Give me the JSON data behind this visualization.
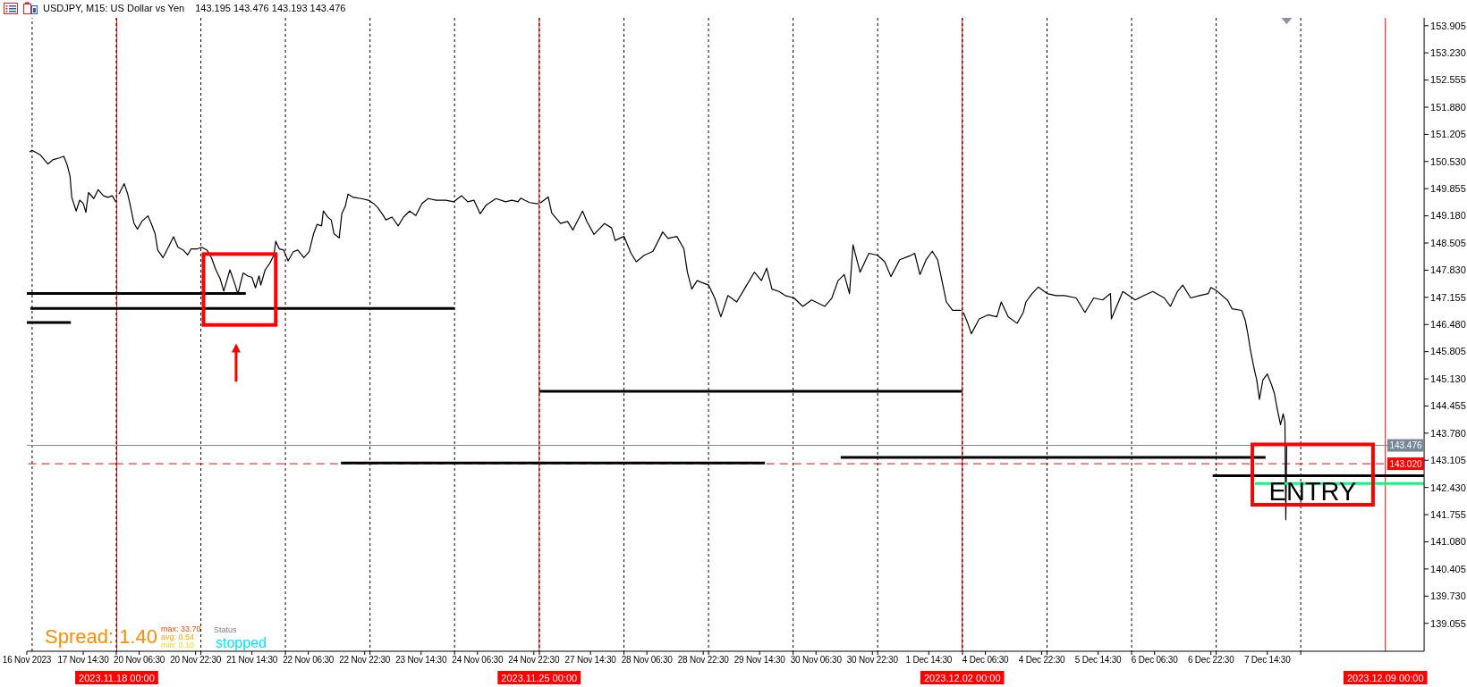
{
  "chart_data": [
    {
      "type": "other",
      "title": "USDJPY, M15: US Dollar vs Yen",
      "subtitle": "143.195 143.476 143.193 143.476"
    },
    {
      "type": "line",
      "series": [
        {
          "color": "#000000",
          "x": [
            "2023-11-16T23:15",
            "2023-11-17T00:00",
            "2023-11-17T02:15",
            "2023-11-17T04:30",
            "2023-11-17T06:00",
            "2023-11-17T07:45",
            "2023-11-17T09:00",
            "2023-11-17T10:00",
            "2023-11-17T10:45",
            "2023-11-17T11:15",
            "2023-11-17T12:30",
            "2023-11-17T13:30",
            "2023-11-17T14:30",
            "2023-11-17T15:15",
            "2023-11-17T16:00",
            "2023-11-17T17:30",
            "2023-11-17T18:45",
            "2023-11-17T20:15",
            "2023-11-17T21:30",
            "2023-11-17T22:45",
            "2023-11-17T23:45"
          ],
          "values": [
            150.77,
            150.81,
            150.7,
            150.47,
            150.58,
            150.62,
            150.66,
            150.43,
            150.17,
            149.64,
            149.3,
            149.57,
            149.49,
            149.27,
            149.76,
            149.61,
            149.83,
            149.68,
            149.64,
            149.68,
            149.53
          ]
        },
        {
          "color": "#000000",
          "x": [
            "2023-11-16T22:30",
            "2023-11-18T00:00"
          ],
          "values": [
            147.25,
            147.25
          ]
        },
        {
          "color": "#000000",
          "x": [
            "2023-11-16T23:30",
            "2023-11-18T00:00"
          ],
          "values": [
            146.88,
            146.88
          ]
        },
        {
          "color": "#000000",
          "x": [
            "2023-11-16T22:30",
            "2023-11-17T11:00"
          ],
          "values": [
            146.53,
            146.53
          ]
        }
      ],
      "xlim": [
        "2023-11-16T22:30",
        "2023-11-18T00:00"
      ],
      "xticks": [
        {
          "value": "2023-11-16T22:30",
          "label": "16 Nov 2023"
        },
        {
          "value": "2023-11-17T14:30",
          "label": "17 Nov 14:30"
        }
      ],
      "ylim": [
        138.36,
        154.1
      ],
      "tick_labels": "x",
      "ref_lines": [
        {
          "axis": "x",
          "value": "2023-11-17T00:00",
          "color": "#000000",
          "line_style": "dotted"
        },
        {
          "axis": "x",
          "value": "2023-11-18T00:00",
          "label": "2023.11.18 00:00",
          "color": "#ff0000"
        },
        {
          "axis": "y",
          "value": 143.476,
          "color": "#778899"
        },
        {
          "axis": "y",
          "value": 143.02,
          "color": "#ff0000",
          "line_style": "dashed"
        }
      ]
    },
    {
      "type": "line",
      "series": [
        {
          "color": "#000000",
          "x": [
            "2023-11-20T00:45",
            "2023-11-20T02:15",
            "2023-11-20T03:15",
            "2023-11-20T03:45",
            "2023-11-20T05:00",
            "2023-11-20T06:00",
            "2023-11-20T07:15",
            "2023-11-20T09:00",
            "2023-11-20T10:00",
            "2023-11-20T11:00",
            "2023-11-20T11:45",
            "2023-11-20T13:15",
            "2023-11-20T15:00",
            "2023-11-20T16:15",
            "2023-11-20T17:30",
            "2023-11-20T19:00",
            "2023-11-20T20:15",
            "2023-11-20T21:15",
            "2023-11-20T23:00",
            "2023-11-21T00:15",
            "2023-11-21T01:45",
            "2023-11-21T03:00",
            "2023-11-21T04:15",
            "2023-11-21T05:30",
            "2023-11-21T06:30",
            "2023-11-21T08:15",
            "2023-11-21T09:45",
            "2023-11-21T10:30",
            "2023-11-21T12:00",
            "2023-11-21T13:15",
            "2023-11-21T14:30",
            "2023-11-21T15:30",
            "2023-11-21T16:30",
            "2023-11-21T17:00",
            "2023-11-21T18:15",
            "2023-11-21T19:30",
            "2023-11-21T20:45",
            "2023-11-21T21:15",
            "2023-11-21T22:15",
            "2023-11-21T23:30",
            "2023-11-22T00:45",
            "2023-11-22T02:15",
            "2023-11-22T03:30",
            "2023-11-22T05:15",
            "2023-11-22T06:45",
            "2023-11-22T08:00",
            "2023-11-22T09:00",
            "2023-11-22T10:15",
            "2023-11-22T10:45",
            "2023-11-22T12:00",
            "2023-11-22T13:00",
            "2023-11-22T13:45",
            "2023-11-22T15:15",
            "2023-11-22T16:00",
            "2023-11-22T17:00",
            "2023-11-22T17:45",
            "2023-11-22T19:15",
            "2023-11-22T21:30",
            "2023-11-22T23:30",
            "2023-11-23T01:00",
            "2023-11-23T02:15",
            "2023-11-23T03:45",
            "2023-11-23T04:30",
            "2023-11-23T06:15",
            "2023-11-23T08:00",
            "2023-11-23T09:30",
            "2023-11-23T11:15",
            "2023-11-23T13:00",
            "2023-11-23T14:45",
            "2023-11-23T16:30",
            "2023-11-23T18:45",
            "2023-11-23T21:30",
            "2023-11-23T23:45",
            "2023-11-24T02:00",
            "2023-11-24T03:45",
            "2023-11-24T05:30",
            "2023-11-24T07:15",
            "2023-11-24T09:00",
            "2023-11-24T11:45",
            "2023-11-24T14:30",
            "2023-11-24T16:15",
            "2023-11-24T18:00",
            "2023-11-24T18:45",
            "2023-11-24T21:15",
            "2023-11-24T23:45"
          ],
          "values": [
            149.72,
            149.98,
            149.72,
            149.53,
            149.0,
            148.85,
            149.04,
            149.18,
            148.97,
            148.74,
            148.33,
            148.14,
            148.44,
            148.66,
            148.4,
            148.33,
            148.21,
            148.36,
            148.36,
            148.4,
            148.33,
            148.14,
            147.84,
            147.61,
            147.31,
            147.84,
            147.46,
            147.24,
            147.76,
            147.69,
            147.65,
            147.39,
            147.69,
            147.46,
            147.84,
            147.99,
            148.21,
            148.55,
            148.36,
            148.33,
            148.06,
            148.29,
            148.33,
            148.14,
            148.29,
            148.74,
            148.97,
            148.93,
            149.3,
            149.15,
            149.08,
            148.74,
            148.63,
            149.23,
            149.42,
            149.72,
            149.64,
            149.61,
            149.57,
            149.49,
            149.38,
            149.19,
            149.08,
            149.15,
            148.93,
            149.15,
            149.3,
            149.19,
            149.49,
            149.61,
            149.57,
            149.57,
            149.53,
            149.68,
            149.53,
            149.57,
            149.23,
            149.45,
            149.61,
            149.53,
            149.57,
            149.53,
            149.62,
            149.51,
            149.48
          ]
        },
        {
          "color": "#000000",
          "x": [
            "2023-11-20T00:00",
            "2023-11-21T12:45"
          ],
          "values": [
            147.25,
            147.25
          ]
        },
        {
          "color": "#000000",
          "x": [
            "2023-11-20T00:00",
            "2023-11-24T00:00"
          ],
          "values": [
            146.88,
            146.88
          ]
        },
        {
          "color": "#000000",
          "x": [
            "2023-11-22T15:45",
            "2023-11-25T00:00"
          ],
          "values": [
            143.04,
            143.04
          ]
        }
      ],
      "xlim": [
        "2023-11-20T00:00",
        "2023-11-25T00:00"
      ],
      "xticks": [
        {
          "value": "2023-11-20T00:00",
          "label": null
        },
        {
          "value": "2023-11-20T06:30",
          "label": "20 Nov 06:30"
        },
        {
          "value": "2023-11-20T22:30",
          "label": "20 Nov 22:30"
        },
        {
          "value": "2023-11-21T00:00",
          "label": null
        },
        {
          "value": "2023-11-21T14:30",
          "label": "21 Nov 14:30"
        },
        {
          "value": "2023-11-22T00:00",
          "label": null
        },
        {
          "value": "2023-11-22T06:30",
          "label": "22 Nov 06:30"
        },
        {
          "value": "2023-11-22T22:30",
          "label": "22 Nov 22:30"
        },
        {
          "value": "2023-11-23T00:00",
          "label": null
        },
        {
          "value": "2023-11-23T14:30",
          "label": "23 Nov 14:30"
        },
        {
          "value": "2023-11-24T00:00",
          "label": null
        },
        {
          "value": "2023-11-24T06:30",
          "label": "24 Nov 06:30"
        },
        {
          "value": "2023-11-24T22:30",
          "label": "24 Nov 22:30"
        }
      ],
      "ylim": [
        138.36,
        154.1
      ],
      "tick_labels": "x",
      "grid": "x",
      "ref_lines": [
        {
          "axis": "x",
          "value": "2023-11-25T00:00",
          "label": "2023.11.25 00:00",
          "color": "#ff0000"
        },
        {
          "axis": "y",
          "value": 143.476,
          "color": "#778899"
        },
        {
          "axis": "y",
          "value": 143.02,
          "color": "#ff0000",
          "line_style": "dashed"
        }
      ]
    },
    {
      "type": "line",
      "series": [
        {
          "color": "#000000",
          "x": [
            "2023-11-27T00:15",
            "2023-11-27T02:30",
            "2023-11-27T03:30",
            "2023-11-27T06:00",
            "2023-11-27T08:00",
            "2023-11-27T09:30",
            "2023-11-27T12:15",
            "2023-11-27T13:30",
            "2023-11-27T15:30",
            "2023-11-27T18:30",
            "2023-11-27T20:30",
            "2023-11-27T21:30",
            "2023-11-28T00:00",
            "2023-11-28T02:00",
            "2023-11-28T03:30",
            "2023-11-28T05:45",
            "2023-11-28T08:15",
            "2023-11-28T11:00",
            "2023-11-28T12:30",
            "2023-11-28T15:00",
            "2023-11-28T17:00",
            "2023-11-28T18:00",
            "2023-11-28T19:15",
            "2023-11-28T20:45",
            "2023-11-29T00:00",
            "2023-11-29T01:45",
            "2023-11-29T03:30",
            "2023-11-29T05:30",
            "2023-11-29T08:00",
            "2023-11-29T10:30",
            "2023-11-29T13:00",
            "2023-11-29T15:00",
            "2023-11-29T16:30",
            "2023-11-29T18:00",
            "2023-11-29T20:00",
            "2023-11-29T21:45",
            "2023-11-30T00:15",
            "2023-11-30T02:45",
            "2023-11-30T05:15",
            "2023-11-30T09:00",
            "2023-11-30T11:00",
            "2023-11-30T12:45",
            "2023-11-30T14:30",
            "2023-11-30T16:00",
            "2023-11-30T17:00",
            "2023-11-30T19:00",
            "2023-11-30T21:30",
            "2023-12-01T00:00",
            "2023-12-01T02:00",
            "2023-12-01T03:45",
            "2023-12-01T06:15",
            "2023-12-01T09:30",
            "2023-12-01T10:30",
            "2023-12-01T12:00",
            "2023-12-01T13:45",
            "2023-12-01T15:30",
            "2023-12-01T17:00",
            "2023-12-01T18:00",
            "2023-12-01T19:30",
            "2023-12-01T21:15",
            "2023-12-01T23:45"
          ],
          "values": [
            149.5,
            149.65,
            149.25,
            148.99,
            149.04,
            148.83,
            149.3,
            149.04,
            148.72,
            148.99,
            148.88,
            148.57,
            148.67,
            148.25,
            148.04,
            148.2,
            148.3,
            148.78,
            148.62,
            148.67,
            148.36,
            147.78,
            147.36,
            147.57,
            147.46,
            147.14,
            146.67,
            147.2,
            147.04,
            147.41,
            147.78,
            147.57,
            147.88,
            147.36,
            147.3,
            147.2,
            147.14,
            146.93,
            147.09,
            146.93,
            147.14,
            147.57,
            147.72,
            147.25,
            148.46,
            147.78,
            148.25,
            148.2,
            148.04,
            147.67,
            148.09,
            148.2,
            148.25,
            147.72,
            148.09,
            148.3,
            148.09,
            147.67,
            147.04,
            146.83,
            146.83
          ]
        },
        {
          "color": "#000000",
          "x": [
            "2023-11-27T00:00",
            "2023-12-02T00:00"
          ],
          "values": [
            144.82,
            144.82
          ]
        },
        {
          "color": "#000000",
          "x": [
            "2023-11-27T00:00",
            "2023-11-29T16:00"
          ],
          "values": [
            143.04,
            143.04
          ]
        },
        {
          "color": "#000000",
          "x": [
            "2023-11-30T13:30",
            "2023-12-02T00:00"
          ],
          "values": [
            143.18,
            143.18
          ]
        }
      ],
      "xlim": [
        "2023-11-27T00:00",
        "2023-12-02T00:00"
      ],
      "xticks": [
        {
          "value": "2023-11-27T00:00",
          "label": null
        },
        {
          "value": "2023-11-27T14:30",
          "label": "27 Nov 14:30"
        },
        {
          "value": "2023-11-28T00:00",
          "label": null
        },
        {
          "value": "2023-11-28T06:30",
          "label": "28 Nov 06:30"
        },
        {
          "value": "2023-11-28T22:30",
          "label": "28 Nov 22:30"
        },
        {
          "value": "2023-11-29T00:00",
          "label": null
        },
        {
          "value": "2023-11-29T14:30",
          "label": "29 Nov 14:30"
        },
        {
          "value": "2023-11-30T00:00",
          "label": null
        },
        {
          "value": "2023-11-30T06:30",
          "label": "30 Nov 06:30"
        },
        {
          "value": "2023-11-30T22:30",
          "label": "30 Nov 22:30"
        },
        {
          "value": "2023-12-01T00:00",
          "label": null
        },
        {
          "value": "2023-12-01T14:30",
          "label": "1 Dec 14:30"
        }
      ],
      "ylim": [
        138.36,
        154.1
      ],
      "tick_labels": "x",
      "grid": "x",
      "ref_lines": [
        {
          "axis": "x",
          "value": "2023-12-02T00:00",
          "label": "2023.12.02 00:00",
          "color": "#ff0000"
        },
        {
          "axis": "y",
          "value": 143.476,
          "color": "#778899"
        },
        {
          "axis": "y",
          "value": 143.02,
          "color": "#ff0000",
          "line_style": "dashed"
        }
      ]
    },
    {
      "type": "line",
      "annotations": [
        "ENTRY"
      ],
      "series": [
        {
          "color": "#000000",
          "x": [
            "2023-12-04T00:15",
            "2023-12-04T01:30",
            "2023-12-04T02:30",
            "2023-12-04T04:45",
            "2023-12-04T07:15",
            "2023-12-04T09:45",
            "2023-12-04T11:00",
            "2023-12-04T13:00",
            "2023-12-04T15:30",
            "2023-12-04T17:15",
            "2023-12-04T18:00",
            "2023-12-04T19:45",
            "2023-12-04T21:30",
            "2023-12-05T00:00",
            "2023-12-05T02:30",
            "2023-12-05T05:00",
            "2023-12-05T08:15",
            "2023-12-05T10:45",
            "2023-12-05T13:15",
            "2023-12-05T15:45",
            "2023-12-05T18:00",
            "2023-12-05T18:15",
            "2023-12-05T21:30",
            "2023-12-06T01:00",
            "2023-12-06T03:30",
            "2023-12-06T06:00",
            "2023-12-06T09:15",
            "2023-12-06T11:00",
            "2023-12-06T13:00",
            "2023-12-06T14:30",
            "2023-12-06T16:45",
            "2023-12-06T19:15",
            "2023-12-06T21:45",
            "2023-12-06T22:30",
            "2023-12-07T00:15",
            "2023-12-07T03:15",
            "2023-12-07T04:30",
            "2023-12-07T07:15",
            "2023-12-07T08:15",
            "2023-12-07T09:00",
            "2023-12-07T09:45",
            "2023-12-07T10:45",
            "2023-12-07T11:30",
            "2023-12-07T12:15",
            "2023-12-07T13:15",
            "2023-12-07T14:30",
            "2023-12-07T15:45",
            "2023-12-07T16:30",
            "2023-12-07T17:15",
            "2023-12-07T18:15",
            "2023-12-07T19:00",
            "2023-12-07T19:30",
            "2023-12-07T19:45",
            "2023-12-07T20:00"
          ],
          "values": [
            146.78,
            146.51,
            146.25,
            146.62,
            146.72,
            146.67,
            147.04,
            146.67,
            146.51,
            146.78,
            147.04,
            147.25,
            147.41,
            147.25,
            147.2,
            147.2,
            147.14,
            146.78,
            147.14,
            147.09,
            147.25,
            146.62,
            147.3,
            147.09,
            147.2,
            147.3,
            147.14,
            146.93,
            147.3,
            147.46,
            147.14,
            147.2,
            147.25,
            147.4,
            147.31,
            147.08,
            146.87,
            146.83,
            146.58,
            146.24,
            145.82,
            145.39,
            145.1,
            144.62,
            145.1,
            145.25,
            144.97,
            144.77,
            144.41,
            143.99,
            144.26,
            144.05,
            141.63,
            143.48
          ]
        },
        {
          "color": "#000000",
          "x": [
            "2023-12-04T00:00",
            "2023-12-07T14:00"
          ],
          "values": [
            143.18,
            143.18
          ]
        },
        {
          "color": "#000000",
          "x": [
            "2023-12-06T23:00",
            "2023-12-09T11:00"
          ],
          "values": [
            142.72,
            142.72
          ]
        },
        {
          "color": "#00ff7f",
          "x": [
            "2023-12-07T11:00",
            "2023-12-09T11:00"
          ],
          "values": [
            142.53,
            142.53
          ]
        }
      ],
      "xlim": [
        "2023-12-04T00:00",
        "2023-12-09T11:00"
      ],
      "xticks": [
        {
          "value": "2023-12-04T00:00",
          "label": null
        },
        {
          "value": "2023-12-04T06:30",
          "label": "4 Dec 06:30"
        },
        {
          "value": "2023-12-04T22:30",
          "label": "4 Dec 22:30"
        },
        {
          "value": "2023-12-05T00:00",
          "label": null
        },
        {
          "value": "2023-12-05T14:30",
          "label": "5 Dec 14:30"
        },
        {
          "value": "2023-12-06T00:00",
          "label": null
        },
        {
          "value": "2023-12-06T06:30",
          "label": "6 Dec 06:30"
        },
        {
          "value": "2023-12-06T22:30",
          "label": "6 Dec 22:30"
        },
        {
          "value": "2023-12-07T00:00",
          "label": null
        },
        {
          "value": "2023-12-07T14:30",
          "label": "7 Dec 14:30"
        },
        {
          "value": "2023-12-08T00:00",
          "label": null
        }
      ],
      "ylim": [
        138.36,
        154.1
      ],
      "yticks": [
        139.055,
        {
          "value": 139.73,
          "label": "139.730"
        },
        140.405,
        {
          "value": 141.08,
          "label": "141.080"
        },
        141.755,
        {
          "value": 142.43,
          "label": "142.430"
        },
        143.105,
        {
          "value": 143.78,
          "label": "143.780"
        },
        144.455,
        {
          "value": 145.13,
          "label": "145.130"
        },
        145.805,
        {
          "value": 146.48,
          "label": "146.480"
        },
        147.155,
        {
          "value": 147.83,
          "label": "147.830"
        },
        148.505,
        {
          "value": 149.18,
          "label": "149.180"
        },
        149.855,
        {
          "value": 150.53,
          "label": "150.530"
        },
        151.205,
        {
          "value": 151.88,
          "label": "151.880"
        },
        152.555,
        {
          "value": 153.23,
          "label": "153.230"
        },
        153.905
      ],
      "grid": "x",
      "ref_lines": [
        {
          "axis": "x",
          "value": "2023-12-09T00:00",
          "label": "2023.12.09 00:00",
          "color": "#ff0000"
        },
        {
          "axis": "y",
          "value": 143.476,
          "label": "143.476",
          "color": "#778899"
        },
        {
          "axis": "y",
          "value": 143.02,
          "label": "143.020",
          "color": "#ff0000",
          "line_style": "dashed"
        }
      ]
    },
    {
      "type": "other",
      "annotations": [
        "Spread: 1.40",
        "max: 33.70",
        "avg: 0.54",
        "min: 0.10",
        "Status",
        "stopped"
      ]
    }
  ]
}
